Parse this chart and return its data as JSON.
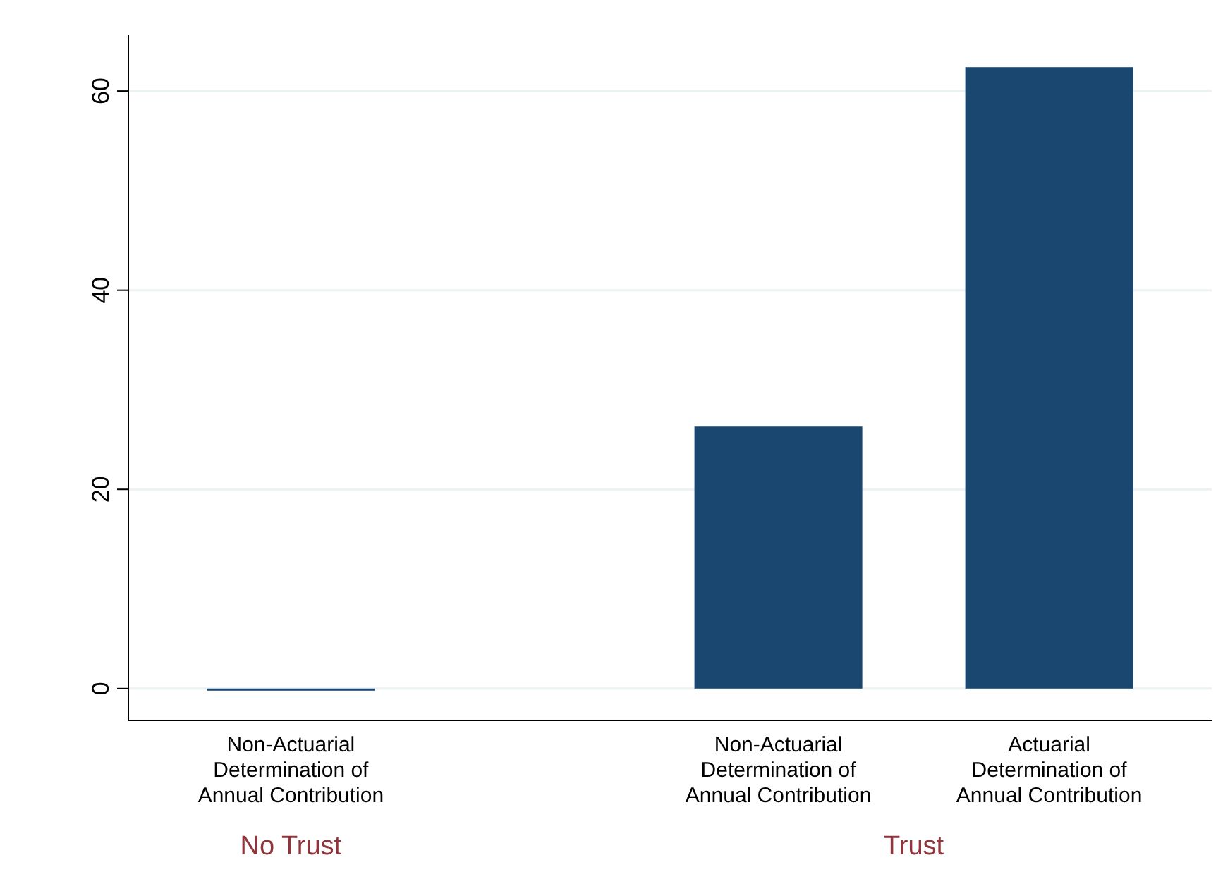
{
  "chart_data": {
    "type": "bar",
    "categories": [
      "Non-Actuarial Determination of Annual Contribution",
      "Non-Actuarial Determination of Annual Contribution",
      "Actuarial Determination of Annual Contribution"
    ],
    "values": [
      0,
      26.3,
      62.4
    ],
    "color": "#1a476f",
    "ylim": [
      -3.2,
      65.6
    ],
    "yticks": [
      0,
      20,
      40,
      60
    ],
    "grid": "y",
    "annotations": [
      "No Trust",
      "Trust"
    ]
  }
}
